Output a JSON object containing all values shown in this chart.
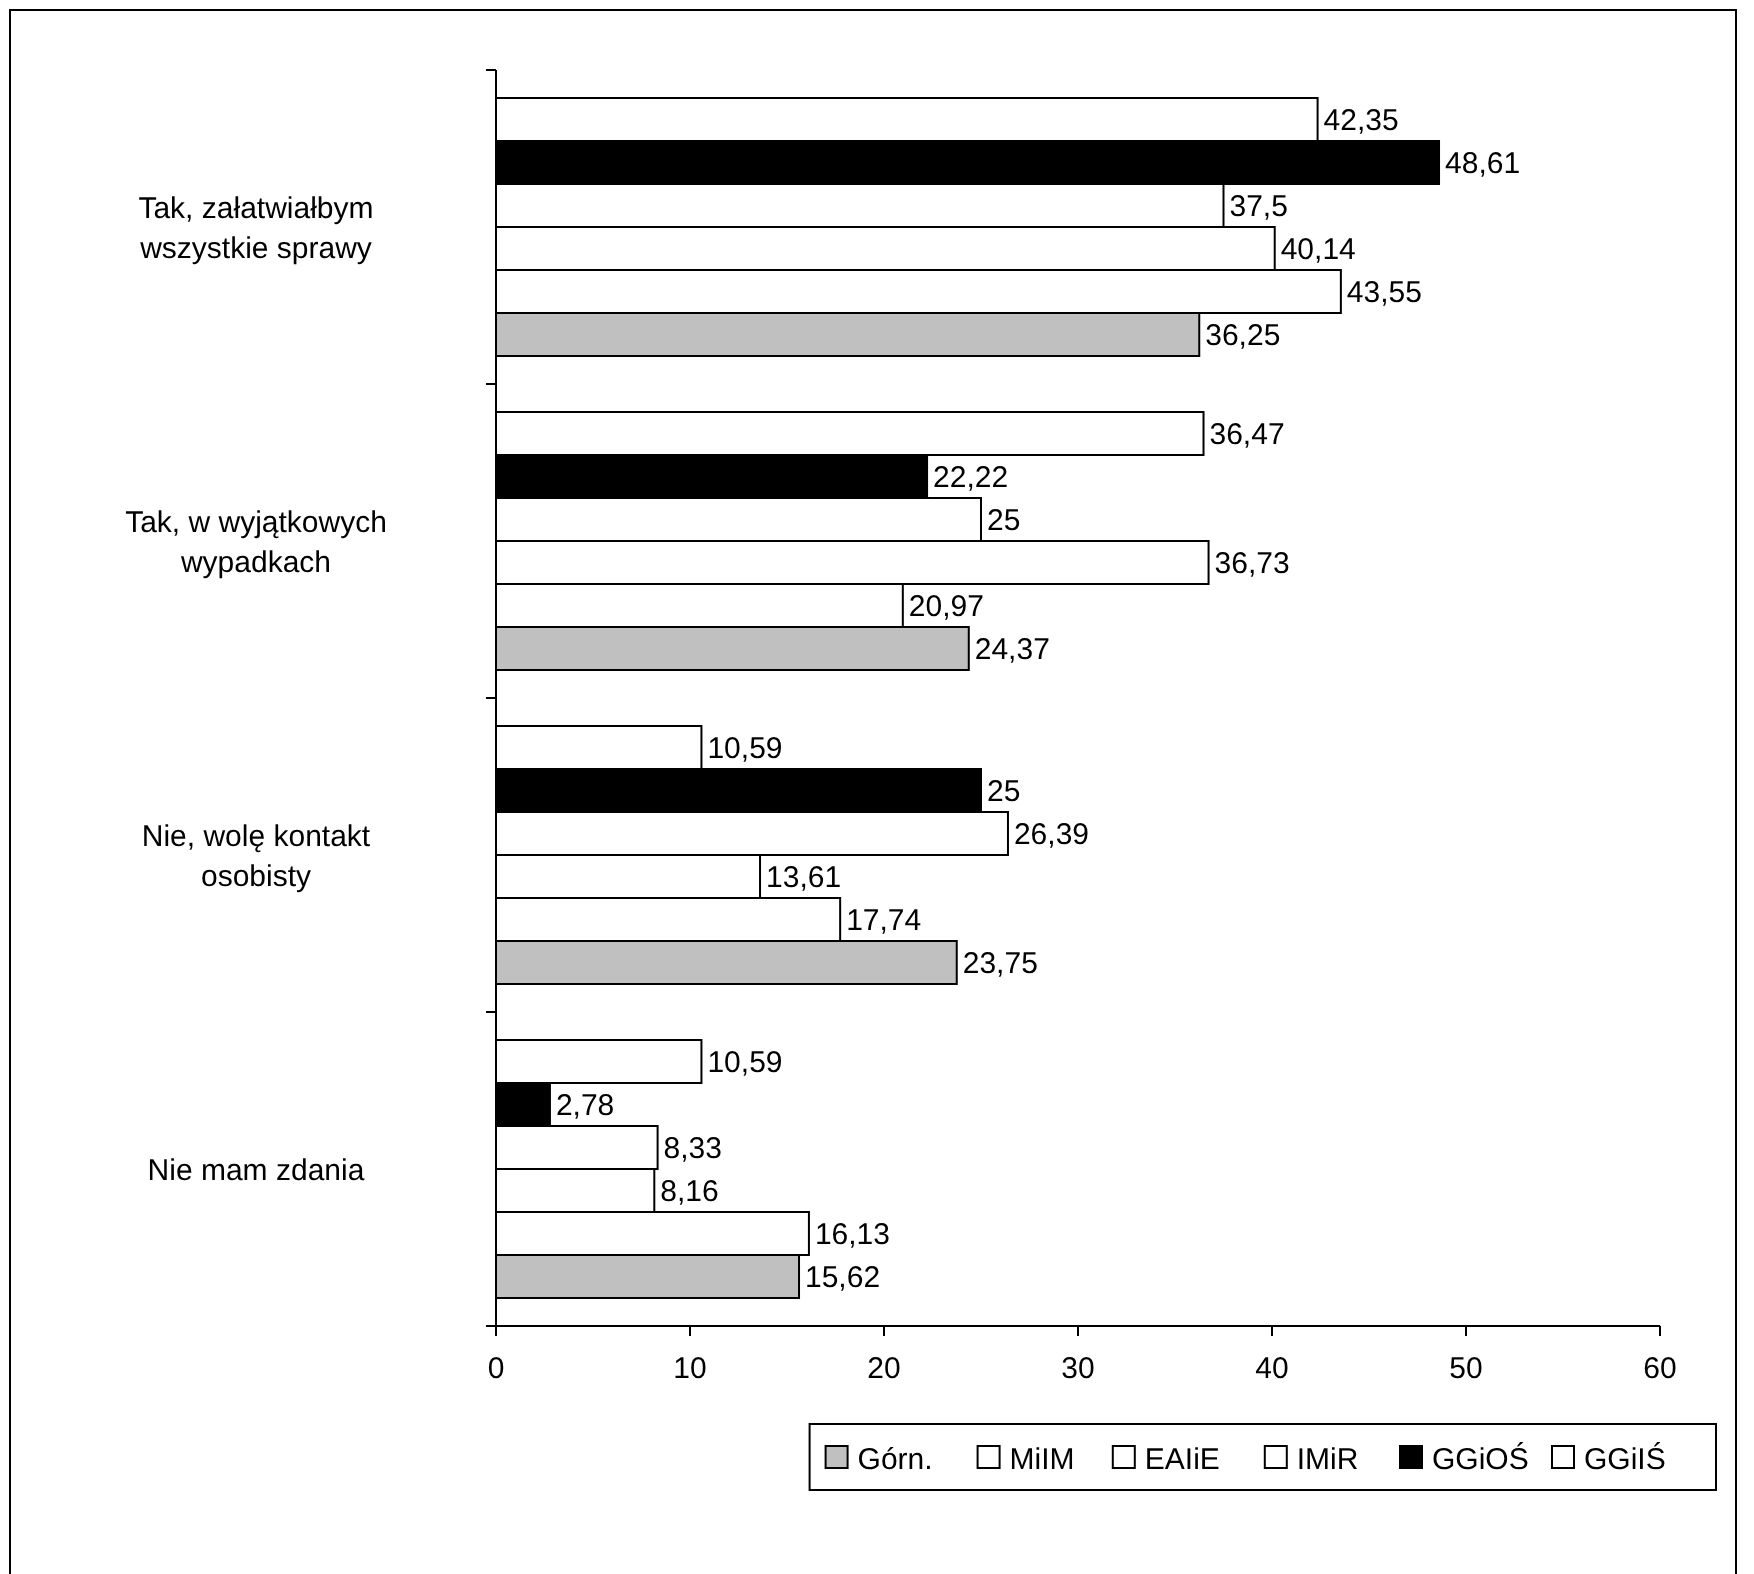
{
  "chart_data": {
    "type": "bar",
    "orientation": "horizontal",
    "categories": [
      "Tak, załatwiałbym wszystkie sprawy",
      "Tak, w wyjątkowych wypadkach",
      "Nie, wolę kontakt osobisty",
      "Nie mam zdania"
    ],
    "series": [
      {
        "name": "GGiIŚ",
        "color": "#ffffff",
        "values": [
          42.35,
          36.47,
          10.59,
          10.59
        ],
        "value_labels": [
          "42,35",
          "36,47",
          "10,59",
          "10,59"
        ]
      },
      {
        "name": "GGiOŚ",
        "color": "#000000",
        "values": [
          48.61,
          22.22,
          25,
          2.78
        ],
        "value_labels": [
          "48,61",
          "22,22",
          "25",
          "2,78"
        ]
      },
      {
        "name": "IMiR",
        "color": "#ffffff",
        "values": [
          37.5,
          25,
          26.39,
          8.33
        ],
        "value_labels": [
          "37,5",
          "25",
          "26,39",
          "8,33"
        ]
      },
      {
        "name": "EAIiE",
        "color": "#ffffff",
        "values": [
          40.14,
          36.73,
          13.61,
          8.16
        ],
        "value_labels": [
          "40,14",
          "36,73",
          "13,61",
          "8,16"
        ]
      },
      {
        "name": "MiIM",
        "color": "#ffffff",
        "values": [
          43.55,
          20.97,
          17.74,
          16.13
        ],
        "value_labels": [
          "43,55",
          "20,97",
          "17,74",
          "16,13"
        ]
      },
      {
        "name": "Górn.",
        "color": "#c0c0c0",
        "values": [
          36.25,
          24.37,
          23.75,
          15.62
        ],
        "value_labels": [
          "36,25",
          "24,37",
          "23,75",
          "15,62"
        ]
      }
    ],
    "xlim": [
      0,
      60
    ],
    "xticks": [
      0,
      10,
      20,
      30,
      40,
      50,
      60
    ],
    "grid": false,
    "legend": "bottom"
  }
}
